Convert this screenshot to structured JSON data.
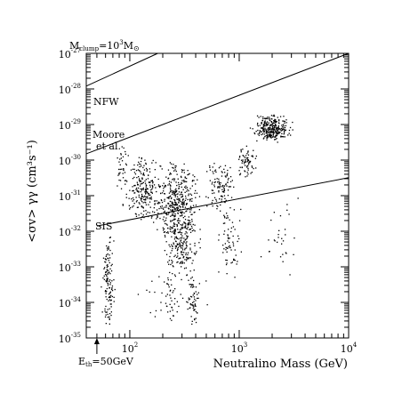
{
  "chart_data": {
    "type": "scatter",
    "title": "",
    "xlabel": "Neutralino Mass (GeV)",
    "ylabel": "<σv> γγ (cm³s⁻¹)",
    "x_scale": "log",
    "y_scale": "log",
    "xlim": [
      40,
      10000
    ],
    "ylim": [
      1e-35,
      1e-27
    ],
    "x_ticks": [
      {
        "value": 100,
        "base": "10",
        "exp": "2"
      },
      {
        "value": 1000,
        "base": "10",
        "exp": "3"
      },
      {
        "value": 10000,
        "base": "10",
        "exp": "4"
      }
    ],
    "y_ticks": [
      {
        "value": 1e-27,
        "base": "10",
        "exp": "-27"
      },
      {
        "value": 1e-28,
        "base": "10",
        "exp": "-28"
      },
      {
        "value": 1e-29,
        "base": "10",
        "exp": "-29"
      },
      {
        "value": 1e-30,
        "base": "10",
        "exp": "-30"
      },
      {
        "value": 1e-31,
        "base": "10",
        "exp": "-31"
      },
      {
        "value": 1e-32,
        "base": "10",
        "exp": "-32"
      },
      {
        "value": 1e-33,
        "base": "10",
        "exp": "-33"
      },
      {
        "value": 1e-34,
        "base": "10",
        "exp": "-34"
      },
      {
        "value": 1e-35,
        "base": "10",
        "exp": "-35"
      }
    ],
    "lines": [
      {
        "name": "NFW",
        "points": [
          [
            40,
            1.2e-28
          ],
          [
            180,
            1e-27
          ]
        ]
      },
      {
        "name": "Moore et al.",
        "points": [
          [
            40,
            1.5e-30
          ],
          [
            10000,
            1e-27
          ]
        ]
      },
      {
        "name": "SIS",
        "points": [
          [
            50,
            1.4e-32
          ],
          [
            10000,
            3.2e-31
          ]
        ]
      }
    ],
    "annotations": {
      "clump_label": "M",
      "clump_sub": "clump",
      "clump_value": "=10",
      "clump_exp": "3",
      "clump_unit": "M",
      "clump_sun": "⊙",
      "nfw": "NFW",
      "moore_1": "Moore",
      "moore_2": "et al.",
      "sis": "SIS",
      "threshold": "E",
      "threshold_sub": "th",
      "threshold_value": "=50GeV",
      "threshold_mass": 50
    },
    "scatter_clusters": [
      {
        "x_range": [
          52,
          75
        ],
        "y_logrange": [
          -34.8,
          -32.0
        ],
        "count": 130
      },
      {
        "x_range": [
          70,
          100
        ],
        "y_logrange": [
          -30.8,
          -29.3
        ],
        "count": 35
      },
      {
        "x_range": [
          80,
          220
        ],
        "y_logrange": [
          -31.8,
          -29.8
        ],
        "count": 240
      },
      {
        "x_range": [
          150,
          480
        ],
        "y_logrange": [
          -32.5,
          -30.0
        ],
        "count": 420
      },
      {
        "x_range": [
          180,
          460
        ],
        "y_logrange": [
          -33.3,
          -31.5
        ],
        "count": 160
      },
      {
        "x_range": [
          330,
          430
        ],
        "y_logrange": [
          -34.8,
          -33.0
        ],
        "count": 60
      },
      {
        "x_range": [
          200,
          260
        ],
        "y_logrange": [
          -34.5,
          -33.0
        ],
        "count": 25
      },
      {
        "x_range": [
          450,
          1000
        ],
        "y_logrange": [
          -31.5,
          -30.0
        ],
        "count": 110
      },
      {
        "x_range": [
          600,
          1100
        ],
        "y_logrange": [
          -33.5,
          -31.0
        ],
        "count": 70
      },
      {
        "x_range": [
          900,
          1500
        ],
        "y_logrange": [
          -30.5,
          -29.5
        ],
        "count": 70
      },
      {
        "x_range": [
          1200,
          3200
        ],
        "y_logrange": [
          -29.5,
          -28.7
        ],
        "count": 300
      },
      {
        "x_range": [
          1200,
          4500
        ],
        "y_logrange": [
          -33.5,
          -31.0
        ],
        "count": 30
      },
      {
        "x_range": [
          100,
          700
        ],
        "y_logrange": [
          -34.6,
          -33.0
        ],
        "count": 40
      }
    ]
  }
}
